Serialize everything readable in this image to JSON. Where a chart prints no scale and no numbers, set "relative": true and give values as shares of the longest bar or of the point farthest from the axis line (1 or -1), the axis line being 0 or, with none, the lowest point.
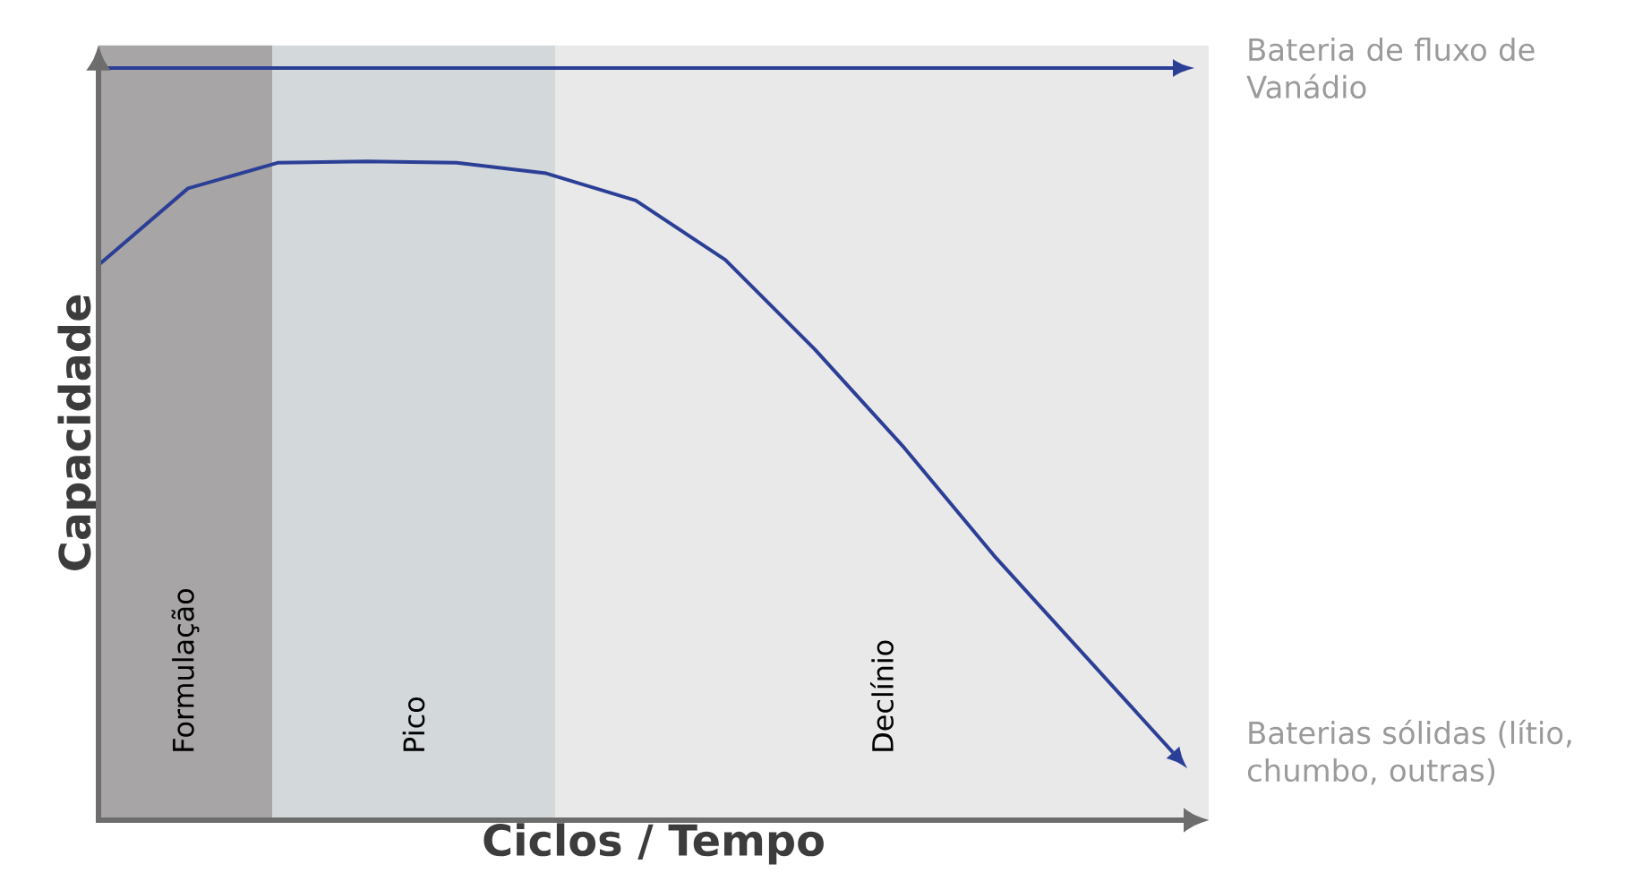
{
  "chart_data": {
    "type": "line",
    "relative": true,
    "xlabel": "Ciclos / Tempo",
    "ylabel": "Capacidade",
    "categories": [
      null,
      null,
      null,
      null,
      null,
      null,
      null,
      null,
      null,
      null,
      null,
      null,
      null
    ],
    "series": [
      {
        "name": "Bateria de fluxo de Vanádio",
        "color": "#2b3f96",
        "values": [
          1,
          1,
          1,
          1,
          1,
          1,
          1,
          1,
          1,
          1,
          1,
          1,
          1
        ]
      },
      {
        "name": "Baterias sólidas (lítio, chumbo, outras)",
        "color": "#2b3f96",
        "values": [
          0.738,
          0.84,
          0.874,
          0.876,
          0.874,
          0.86,
          0.824,
          0.745,
          0.626,
          0.495,
          0.352,
          0.221,
          0.09
        ]
      }
    ],
    "annotations": [
      "Formulação",
      "Pico",
      "Declínio"
    ],
    "legend": "right",
    "marker": "none",
    "line_style": "solid"
  }
}
